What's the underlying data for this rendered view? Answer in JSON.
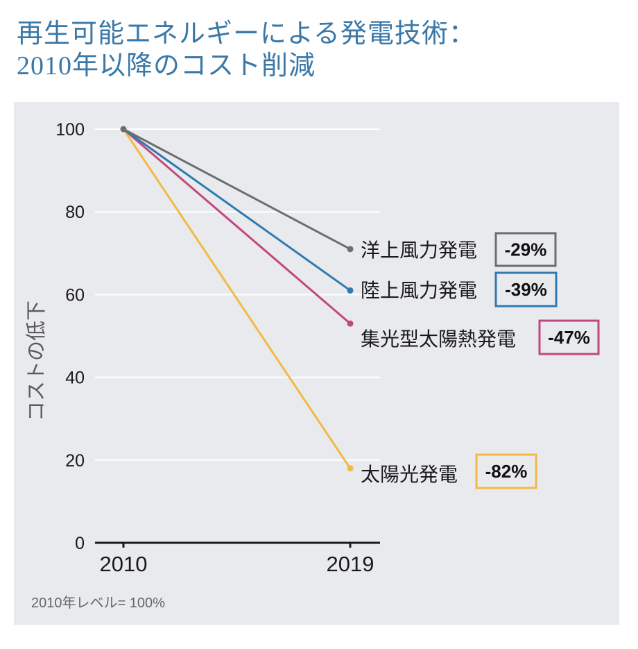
{
  "header": {
    "title_line1": "再生可能エネルギーによる発電技術：",
    "title_line2": "2010年以降のコスト削減"
  },
  "chart_data": {
    "type": "line",
    "title": "再生可能エネルギーによる発電技術：2010年以降のコスト削減",
    "xlabel": "",
    "ylabel": "コストの低下",
    "x": [
      2010,
      2019
    ],
    "xticks": [
      "2010",
      "2019"
    ],
    "yticks": [
      "0",
      "20",
      "40",
      "60",
      "80",
      "100"
    ],
    "ylim": [
      0,
      100
    ],
    "grid": true,
    "series": [
      {
        "name": "洋上風力発電",
        "values": [
          100,
          71
        ],
        "change": "-29%",
        "color": "#6d6d6d"
      },
      {
        "name": "陸上風力発電",
        "values": [
          100,
          61
        ],
        "change": "-39%",
        "color": "#2f7bb0"
      },
      {
        "name": "集光型太陽熱発電",
        "values": [
          100,
          53
        ],
        "change": "-47%",
        "color": "#c2477e"
      },
      {
        "name": "太陽光発電",
        "values": [
          100,
          18
        ],
        "change": "-82%",
        "color": "#f3b944"
      }
    ],
    "note": "2010年レベル= 100%"
  },
  "colors": {
    "title": "#3a78a8",
    "panel_background": "#e9eaee",
    "gridline": "#ffffff",
    "axis": "#1a1a1a"
  }
}
